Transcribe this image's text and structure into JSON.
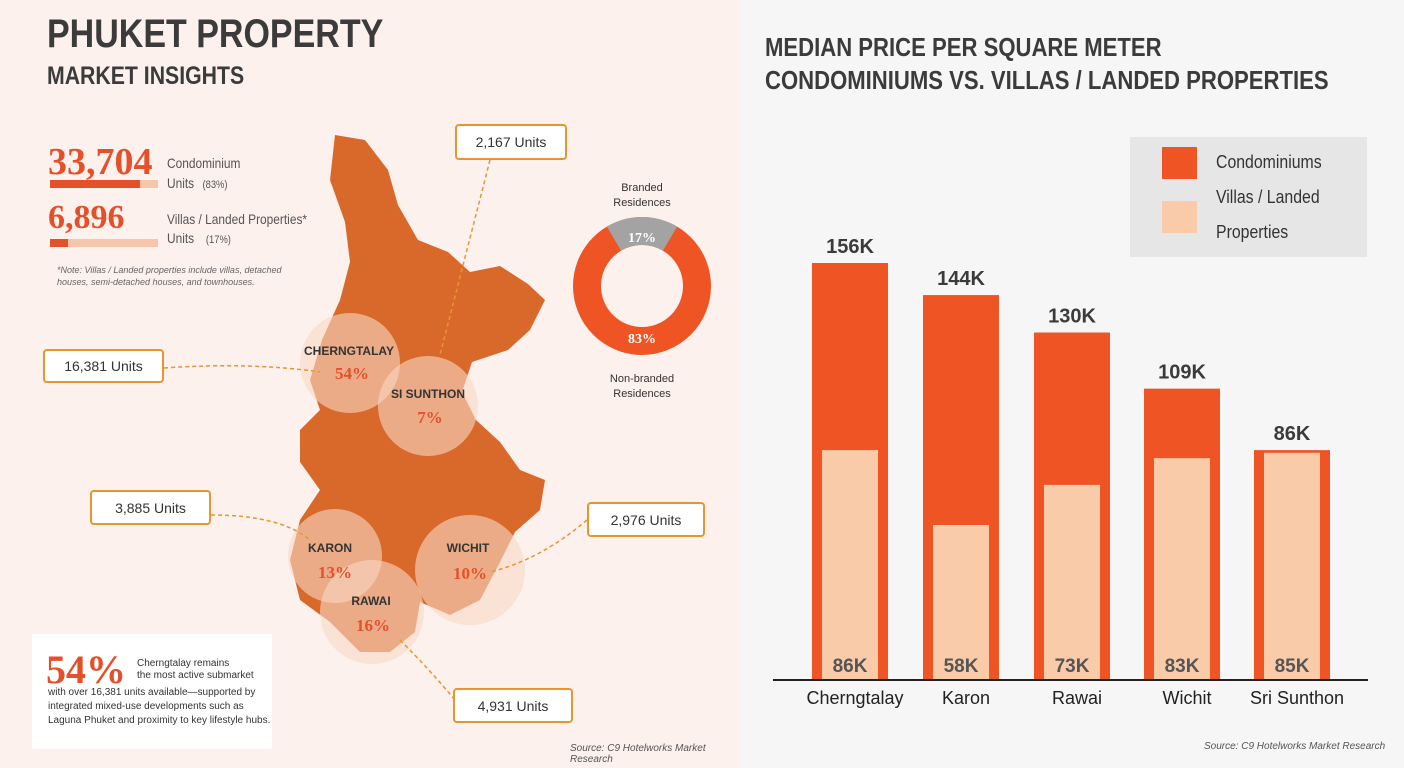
{
  "left": {
    "title": "PHUKET PROPERTY",
    "subtitle": "MARKET INSIGHTS",
    "stats": [
      {
        "value": "33,704",
        "label1": "Condominium",
        "label2": "Units",
        "pct": "(83%)",
        "share": 0.83
      },
      {
        "value": "6,896",
        "label1": "Villas / Landed Properties*",
        "label2": "Units",
        "pct": "(17%)",
        "share": 0.17
      }
    ],
    "note1": "*Note: Villas / Landed properties include villas, detached",
    "note2": "houses, semi-detached houses, and townhouses.",
    "areas": [
      {
        "name": "CHERNGTALAY",
        "pct": "54%",
        "units": "16,381 Units"
      },
      {
        "name": "SI SUNTHON",
        "pct": "7%",
        "units": "2,167 Units"
      },
      {
        "name": "KARON",
        "pct": "13%",
        "units": "3,885 Units"
      },
      {
        "name": "WICHIT",
        "pct": "10%",
        "units": "2,976 Units"
      },
      {
        "name": "RAWAI",
        "pct": "16%",
        "units": "4,931 Units"
      }
    ],
    "donut": {
      "top_label1": "Branded",
      "top_label2": "Residences",
      "bottom_label1": "Non-branded",
      "bottom_label2": "Residences",
      "branded": "17%",
      "nonbranded": "83%",
      "branded_value": 17,
      "nonbranded_value": 83,
      "colors": {
        "branded": "#a3a3a3",
        "nonbranded": "#ee5424"
      }
    },
    "insight": {
      "big": "54%",
      "line1": "Cherngtalay remains",
      "line2": "the most active submarket",
      "line3": "with over 16,381 units available—supported by",
      "line4": "integrated mixed-use developments such as",
      "line5": "Laguna Phuket and proximity to key lifestyle hubs."
    },
    "source": "Source: C9 Hotelworks Market Research"
  },
  "chart_data": {
    "type": "bar",
    "title": "MEDIAN PRICE PER SQUARE METER",
    "subtitle": "CONDOMINIUMS VS. VILLAS / LANDED PROPERTIES",
    "categories": [
      "Cherngtalay",
      "Karon",
      "Rawai",
      "Wichit",
      "Sri Sunthon"
    ],
    "series": [
      {
        "name": "Condominiums",
        "values": [
          156,
          144,
          130,
          109,
          86
        ],
        "labels": [
          "156K",
          "144K",
          "130K",
          "109K",
          "86K"
        ],
        "color": "#ee5424"
      },
      {
        "name": "Villas / Landed Properties",
        "values": [
          86,
          58,
          73,
          83,
          85
        ],
        "labels": [
          "86K",
          "58K",
          "73K",
          "83K",
          "85K"
        ],
        "color": "#f9cba8"
      }
    ],
    "legend": {
      "label1": "Condominiums",
      "label2a": "Villas / Landed",
      "label2b": "Properties",
      "placement": "top-right"
    },
    "ylim": [
      0,
      160
    ],
    "grid": false,
    "source": "Source: C9 Hotelworks Market Research"
  }
}
